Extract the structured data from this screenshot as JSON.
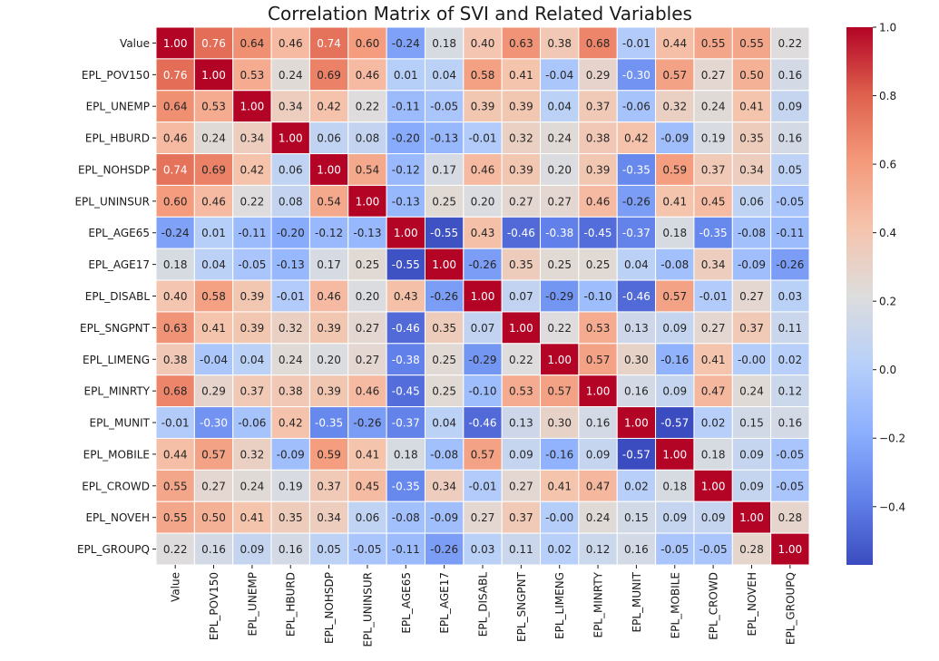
{
  "chart_data": {
    "type": "heatmap",
    "title": "Correlation Matrix of SVI and Related Variables",
    "variables": [
      "Value",
      "EPL_POV150",
      "EPL_UNEMP",
      "EPL_HBURD",
      "EPL_NOHSDP",
      "EPL_UNINSUR",
      "EPL_AGE65",
      "EPL_AGE17",
      "EPL_DISABL",
      "EPL_SNGPNT",
      "EPL_LIMENG",
      "EPL_MINRTY",
      "EPL_MUNIT",
      "EPL_MOBILE",
      "EPL_CROWD",
      "EPL_NOVEH",
      "EPL_GROUPQ"
    ],
    "labels": [
      [
        "1.00",
        "0.76",
        "0.64",
        "0.46",
        "0.74",
        "0.60",
        "-0.24",
        "0.18",
        "0.40",
        "0.63",
        "0.38",
        "0.68",
        "-0.01",
        "0.44",
        "0.55",
        "0.55",
        "0.22"
      ],
      [
        "0.76",
        "1.00",
        "0.53",
        "0.24",
        "0.69",
        "0.46",
        "0.01",
        "0.04",
        "0.58",
        "0.41",
        "-0.04",
        "0.29",
        "-0.30",
        "0.57",
        "0.27",
        "0.50",
        "0.16"
      ],
      [
        "0.64",
        "0.53",
        "1.00",
        "0.34",
        "0.42",
        "0.22",
        "-0.11",
        "-0.05",
        "0.39",
        "0.39",
        "0.04",
        "0.37",
        "-0.06",
        "0.32",
        "0.24",
        "0.41",
        "0.09"
      ],
      [
        "0.46",
        "0.24",
        "0.34",
        "1.00",
        "0.06",
        "0.08",
        "-0.20",
        "-0.13",
        "-0.01",
        "0.32",
        "0.24",
        "0.38",
        "0.42",
        "-0.09",
        "0.19",
        "0.35",
        "0.16"
      ],
      [
        "0.74",
        "0.69",
        "0.42",
        "0.06",
        "1.00",
        "0.54",
        "-0.12",
        "0.17",
        "0.46",
        "0.39",
        "0.20",
        "0.39",
        "-0.35",
        "0.59",
        "0.37",
        "0.34",
        "0.05"
      ],
      [
        "0.60",
        "0.46",
        "0.22",
        "0.08",
        "0.54",
        "1.00",
        "-0.13",
        "0.25",
        "0.20",
        "0.27",
        "0.27",
        "0.46",
        "-0.26",
        "0.41",
        "0.45",
        "0.06",
        "-0.05"
      ],
      [
        "-0.24",
        "0.01",
        "-0.11",
        "-0.20",
        "-0.12",
        "-0.13",
        "1.00",
        "-0.55",
        "0.43",
        "-0.46",
        "-0.38",
        "-0.45",
        "-0.37",
        "0.18",
        "-0.35",
        "-0.08",
        "-0.11"
      ],
      [
        "0.18",
        "0.04",
        "-0.05",
        "-0.13",
        "0.17",
        "0.25",
        "-0.55",
        "1.00",
        "-0.26",
        "0.35",
        "0.25",
        "0.25",
        "0.04",
        "-0.08",
        "0.34",
        "-0.09",
        "-0.26"
      ],
      [
        "0.40",
        "0.58",
        "0.39",
        "-0.01",
        "0.46",
        "0.20",
        "0.43",
        "-0.26",
        "1.00",
        "0.07",
        "-0.29",
        "-0.10",
        "-0.46",
        "0.57",
        "-0.01",
        "0.27",
        "0.03"
      ],
      [
        "0.63",
        "0.41",
        "0.39",
        "0.32",
        "0.39",
        "0.27",
        "-0.46",
        "0.35",
        "0.07",
        "1.00",
        "0.22",
        "0.53",
        "0.13",
        "0.09",
        "0.27",
        "0.37",
        "0.11"
      ],
      [
        "0.38",
        "-0.04",
        "0.04",
        "0.24",
        "0.20",
        "0.27",
        "-0.38",
        "0.25",
        "-0.29",
        "0.22",
        "1.00",
        "0.57",
        "0.30",
        "-0.16",
        "0.41",
        "-0.00",
        "0.02"
      ],
      [
        "0.68",
        "0.29",
        "0.37",
        "0.38",
        "0.39",
        "0.46",
        "-0.45",
        "0.25",
        "-0.10",
        "0.53",
        "0.57",
        "1.00",
        "0.16",
        "0.09",
        "0.47",
        "0.24",
        "0.12"
      ],
      [
        "-0.01",
        "-0.30",
        "-0.06",
        "0.42",
        "-0.35",
        "-0.26",
        "-0.37",
        "0.04",
        "-0.46",
        "0.13",
        "0.30",
        "0.16",
        "1.00",
        "-0.57",
        "0.02",
        "0.15",
        "0.16"
      ],
      [
        "0.44",
        "0.57",
        "0.32",
        "-0.09",
        "0.59",
        "0.41",
        "0.18",
        "-0.08",
        "0.57",
        "0.09",
        "-0.16",
        "0.09",
        "-0.57",
        "1.00",
        "0.18",
        "0.09",
        "-0.05"
      ],
      [
        "0.55",
        "0.27",
        "0.24",
        "0.19",
        "0.37",
        "0.45",
        "-0.35",
        "0.34",
        "-0.01",
        "0.27",
        "0.41",
        "0.47",
        "0.02",
        "0.18",
        "1.00",
        "0.09",
        "-0.05"
      ],
      [
        "0.55",
        "0.50",
        "0.41",
        "0.35",
        "0.34",
        "0.06",
        "-0.08",
        "-0.09",
        "0.27",
        "0.37",
        "-0.00",
        "0.24",
        "0.15",
        "0.09",
        "0.09",
        "1.00",
        "0.28"
      ],
      [
        "0.22",
        "0.16",
        "0.09",
        "0.16",
        "0.05",
        "-0.05",
        "-0.11",
        "-0.26",
        "0.03",
        "0.11",
        "0.02",
        "0.12",
        "0.16",
        "-0.05",
        "-0.05",
        "0.28",
        "1.00"
      ]
    ],
    "colormap": "coolwarm",
    "color_range": [
      -0.57,
      1.0
    ],
    "colorbar_ticks": [
      1.0,
      0.8,
      0.6,
      0.4,
      0.2,
      0.0,
      -0.2,
      -0.4
    ],
    "colorbar_tick_labels": [
      "1.0",
      "0.8",
      "0.6",
      "0.4",
      "0.2",
      "0.0",
      "−0.2",
      "−0.4"
    ],
    "annotated": true,
    "grid_lines": "white",
    "colorbar_position": "right"
  }
}
